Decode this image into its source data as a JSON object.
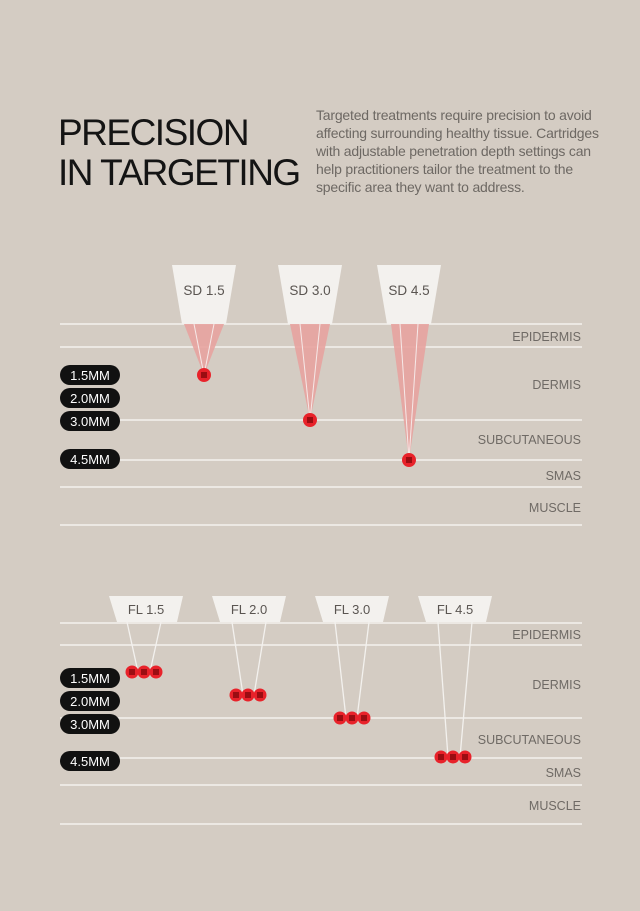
{
  "header": {
    "title_line1": "PRECISION",
    "title_line2": "IN TARGETING",
    "description": "Targeted treatments require precision to avoid affecting surrounding healthy tissue. Cartridges with adjustable penetration depth settings can help practitioners tailor the treatment to the specific area they want to address."
  },
  "layers": [
    "EPIDERMIS",
    "DERMIS",
    "SUBCUTANEOUS",
    "SMAS",
    "MUSCLE"
  ],
  "depth_labels": [
    "1.5MM",
    "2.0MM",
    "3.0MM",
    "4.5MM"
  ],
  "sd_cartridges": [
    {
      "label": "SD 1.5",
      "depth_mm": 1.5
    },
    {
      "label": "SD 3.0",
      "depth_mm": 3.0
    },
    {
      "label": "SD 4.5",
      "depth_mm": 4.5
    }
  ],
  "fl_cartridges": [
    {
      "label": "FL 1.5",
      "depth_mm": 1.5
    },
    {
      "label": "FL 2.0",
      "depth_mm": 2.0
    },
    {
      "label": "FL 3.0",
      "depth_mm": 3.0
    },
    {
      "label": "FL 4.5",
      "depth_mm": 4.5
    }
  ],
  "colors": {
    "background": "#d4ccc3",
    "line": "#f3f1ee",
    "cone_fill": "#e7a3a0",
    "dot": "#e8222a",
    "pill": "#111111",
    "layer_text": "#6f6a65"
  }
}
